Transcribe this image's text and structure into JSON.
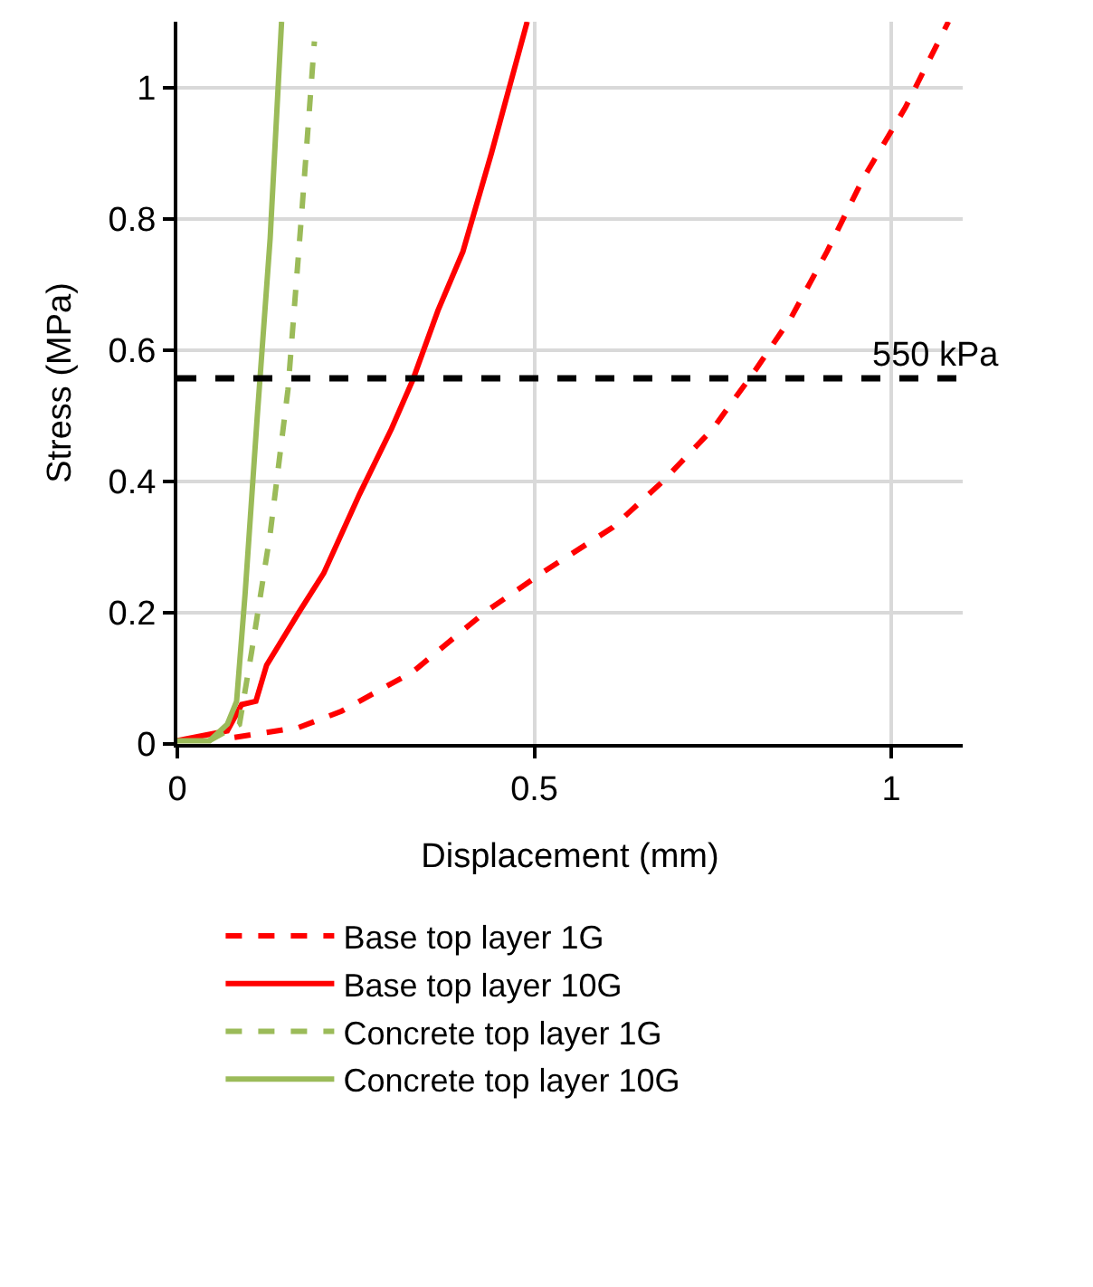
{
  "chart_data": {
    "type": "line",
    "xlabel": "Displacement (mm)",
    "ylabel": "Stress (MPa)",
    "xlim": [
      0,
      1.1
    ],
    "xticks": [
      0,
      0.5,
      1
    ],
    "ylim": [
      0,
      1.1
    ],
    "yticks": [
      0,
      0.2,
      0.4,
      0.6,
      0.8,
      1
    ],
    "grid": true,
    "legend": "bottom",
    "marker": "none",
    "ref_lines": [
      {
        "axis": "y",
        "value": 0.557,
        "label": "550 kPa",
        "color": "#000000",
        "line_style": "dashed"
      }
    ],
    "series": [
      {
        "name": "Base top layer 1G",
        "color": "#ff0000",
        "line_style": "dashed",
        "x": [
          0.08,
          0.17,
          0.23,
          0.33,
          0.43,
          0.51,
          0.61,
          0.68,
          0.75,
          0.81,
          0.86,
          0.91,
          0.96,
          1.02,
          1.08
        ],
        "values": [
          0.01,
          0.025,
          0.05,
          0.11,
          0.2,
          0.26,
          0.33,
          0.4,
          0.48,
          0.57,
          0.65,
          0.75,
          0.86,
          0.97,
          1.1
        ]
      },
      {
        "name": "Base top layer 10G",
        "color": "#ff0000",
        "line_style": "solid",
        "x": [
          0,
          0.07,
          0.09,
          0.11,
          0.125,
          0.17,
          0.205,
          0.255,
          0.3,
          0.33,
          0.365,
          0.4,
          0.44,
          0.475,
          0.49
        ],
        "values": [
          0.005,
          0.02,
          0.06,
          0.065,
          0.12,
          0.2,
          0.26,
          0.38,
          0.48,
          0.555,
          0.66,
          0.75,
          0.9,
          1.04,
          1.1
        ]
      },
      {
        "name": "Concrete top layer 1G",
        "color": "#9bbb59",
        "line_style": "dashed",
        "x": [
          0.045,
          0.087,
          0.104,
          0.13,
          0.155,
          0.175,
          0.192
        ],
        "values": [
          0.005,
          0.03,
          0.14,
          0.32,
          0.54,
          0.82,
          1.07
        ]
      },
      {
        "name": "Concrete top layer 10G",
        "color": "#9bbb59",
        "line_style": "solid",
        "x": [
          0,
          0.045,
          0.07,
          0.083,
          0.095,
          0.112,
          0.13,
          0.146
        ],
        "values": [
          0.005,
          0.005,
          0.03,
          0.065,
          0.23,
          0.5,
          0.77,
          1.1
        ]
      }
    ]
  }
}
